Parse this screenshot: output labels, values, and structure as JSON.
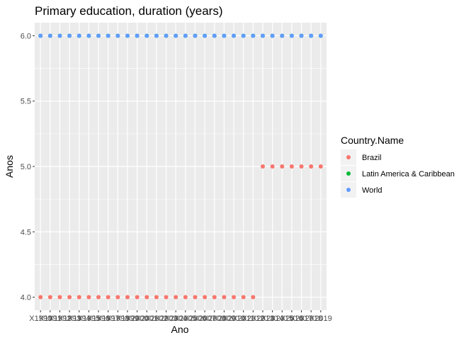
{
  "chart_data": {
    "type": "scatter",
    "title": "Primary education, duration (years)",
    "xlabel": "Ano",
    "ylabel": "Anos",
    "categories": [
      "X1990",
      "X1991",
      "X1992",
      "X1993",
      "X1994",
      "X1995",
      "X1996",
      "X1997",
      "X1998",
      "X1999",
      "X2000",
      "X2001",
      "X2002",
      "X2003",
      "X2004",
      "X2005",
      "X2006",
      "X2007",
      "X2008",
      "X2009",
      "X2010",
      "X2011",
      "X2012",
      "X2013",
      "X2014",
      "X2015",
      "X2016",
      "X2017",
      "X2018",
      "X2019"
    ],
    "y_ticks": [
      4.0,
      4.5,
      5.0,
      5.5,
      6.0
    ],
    "y_tick_labels": [
      "4.0",
      "4.5",
      "5.0",
      "5.5",
      "6.0"
    ],
    "ylim": [
      3.9,
      6.1
    ],
    "legend": {
      "title": "Country.Name",
      "placement": "right"
    },
    "series": [
      {
        "name": "Brazil",
        "color": "#F8766D",
        "values": [
          4,
          4,
          4,
          4,
          4,
          4,
          4,
          4,
          4,
          4,
          4,
          4,
          4,
          4,
          4,
          4,
          4,
          4,
          4,
          4,
          4,
          4,
          4,
          5,
          5,
          5,
          5,
          5,
          5,
          5
        ]
      },
      {
        "name": "Latin America & Caribbean",
        "color": "#00BA38",
        "values": [
          6,
          6,
          6,
          6,
          6,
          6,
          6,
          6,
          6,
          6,
          6,
          6,
          6,
          6,
          6,
          6,
          6,
          6,
          6,
          6,
          6,
          6,
          6,
          6,
          6,
          6,
          6,
          6,
          6,
          6
        ]
      },
      {
        "name": "World",
        "color": "#619CFF",
        "values": [
          6,
          6,
          6,
          6,
          6,
          6,
          6,
          6,
          6,
          6,
          6,
          6,
          6,
          6,
          6,
          6,
          6,
          6,
          6,
          6,
          6,
          6,
          6,
          6,
          6,
          6,
          6,
          6,
          6,
          6
        ]
      }
    ],
    "grid": true,
    "panel_background": "#EBEBEB"
  }
}
